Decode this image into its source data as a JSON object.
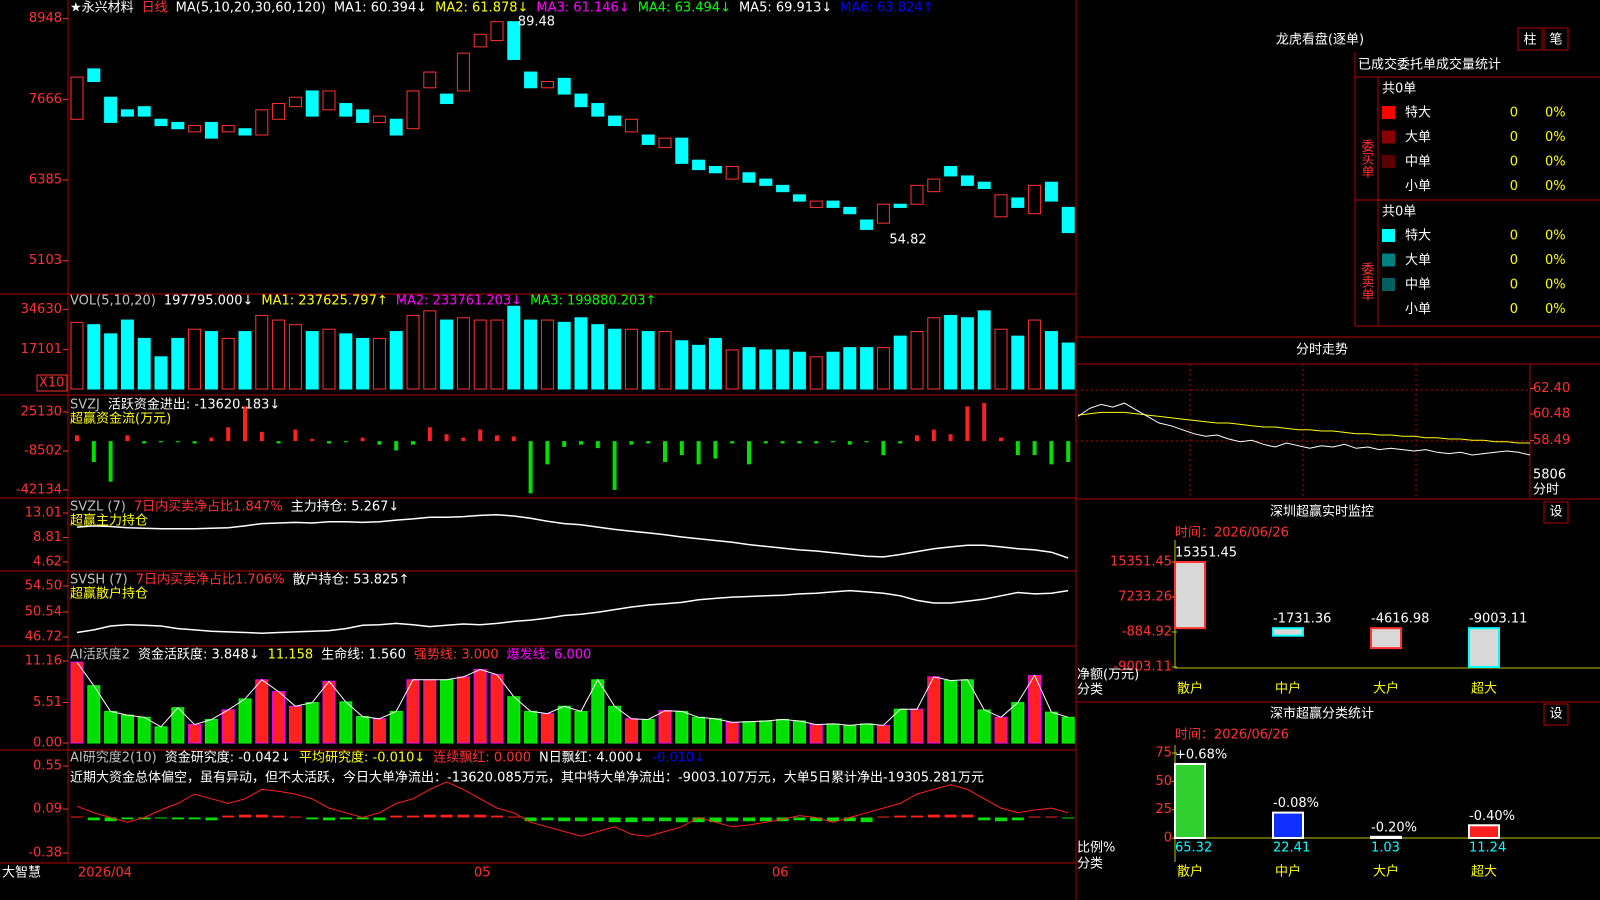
{
  "main": {
    "title": "★永兴材料",
    "period": "日线",
    "ma_params": "MA(5,10,20,30,60,120)",
    "legend": [
      {
        "text": "MA1: 60.394↓",
        "color": "#ffffff"
      },
      {
        "text": "MA2: 61.878↓",
        "color": "#ffff00"
      },
      {
        "text": "MA3: 61.146↓",
        "color": "#ff00ff"
      },
      {
        "text": "MA4: 63.494↓",
        "color": "#00ff00"
      },
      {
        "text": "MA5: 69.913↓",
        "color": "#ffffff"
      },
      {
        "text": "MA6: 63.824↑",
        "color": "#0000ff"
      }
    ],
    "high_mark": 89.48,
    "low_mark": 54.82,
    "ylim": [
      4638,
      9181
    ],
    "yticks": [
      8948,
      7666,
      6385,
      5103
    ],
    "up_color": "#ff3232",
    "down_color": "#00ffff",
    "open": [
      7350,
      8150,
      7700,
      7500,
      7550,
      7350,
      7300,
      7150,
      7300,
      7150,
      7200,
      7100,
      7350,
      7550,
      7800,
      7500,
      7600,
      7500,
      7300,
      7350,
      7200,
      7850,
      7750,
      7800,
      8500,
      8600,
      8900,
      8100,
      7850,
      8000,
      7750,
      7600,
      7400,
      7150,
      7100,
      6900,
      7050,
      6700,
      6600,
      6400,
      6500,
      6400,
      6300,
      6150,
      5950,
      6050,
      5950,
      5750,
      5700,
      6000,
      6000,
      6200,
      6600,
      6450,
      6350,
      5800,
      6100,
      5850,
      6350,
      5950
    ],
    "close": [
      8020,
      7950,
      7300,
      7400,
      7400,
      7250,
      7200,
      7250,
      7050,
      7250,
      7100,
      7500,
      7600,
      7700,
      7400,
      7800,
      7400,
      7300,
      7400,
      7100,
      7800,
      8100,
      7600,
      8400,
      8700,
      8900,
      8300,
      7850,
      7950,
      7750,
      7550,
      7400,
      7250,
      7350,
      6950,
      7050,
      6650,
      6550,
      6500,
      6600,
      6350,
      6300,
      6200,
      6050,
      6050,
      5950,
      5850,
      5600,
      6000,
      5950,
      6300,
      6400,
      6450,
      6300,
      6250,
      6150,
      5950,
      6300,
      6050,
      5550
    ]
  },
  "vol": {
    "name": "VOL(5,10,20)",
    "current": "197795.000↓",
    "legend": [
      {
        "text": "MA1: 237625.797↑",
        "color": "#ffff00"
      },
      {
        "text": "MA2: 233761.203↓",
        "color": "#ff00ff"
      },
      {
        "text": "MA3: 199880.203↑",
        "color": "#00ff00"
      }
    ],
    "unit": "X10",
    "ylim": [
      0,
      40470
    ],
    "yticks": [
      34630,
      17101
    ],
    "values": [
      29000,
      28000,
      24000,
      30000,
      22000,
      14000,
      22000,
      26000,
      25000,
      22000,
      25000,
      32000,
      30000,
      28000,
      25000,
      26000,
      24000,
      22000,
      22000,
      25000,
      32000,
      34000,
      30000,
      31000,
      30000,
      30000,
      36000,
      30000,
      30000,
      29000,
      31000,
      28000,
      26000,
      26000,
      25000,
      25000,
      21000,
      19000,
      22000,
      17000,
      18000,
      17000,
      17000,
      16000,
      14000,
      16000,
      18000,
      18000,
      18000,
      23000,
      25000,
      31000,
      32000,
      31000,
      34000,
      26000,
      23000,
      30000,
      25000,
      20000
    ]
  },
  "flow": {
    "name": "SVZJ",
    "active": "活跃资金进出: -13620.183↓",
    "subtitle": "超赢资金流(万元)",
    "ylim": [
      -48170,
      37200
    ],
    "yticks": [
      25130,
      -8502,
      -42134
    ],
    "up_color": "#ff2020",
    "down_color": "#00e000",
    "values": [
      5000,
      -18000,
      -35000,
      5000,
      -2000,
      -1000,
      -1000,
      -2000,
      3000,
      12000,
      30000,
      8000,
      -2000,
      10000,
      2000,
      -2000,
      -1000,
      3000,
      -3000,
      -8000,
      -3000,
      12000,
      6000,
      3000,
      10000,
      5000,
      4000,
      -45000,
      -20000,
      -5000,
      -3000,
      -6000,
      -42000,
      -3000,
      -2000,
      -18000,
      -12000,
      -20000,
      -15000,
      -2000,
      -20000,
      -2000,
      -2000,
      -2000,
      -2000,
      -1000,
      -3000,
      -1000,
      -12000,
      -2000,
      5000,
      10000,
      6000,
      30000,
      33000,
      3000,
      -12000,
      -12000,
      -20000,
      -18000
    ]
  },
  "zl": {
    "name": "SVZL (7)",
    "ratio": "7日内买卖净占比1.847%",
    "hold": "主力持仓: 5.267↓",
    "subtitle": "超赢主力持仓",
    "ylim": [
      3.25,
      15.24
    ],
    "yticks": [
      13.01,
      8.81,
      4.62
    ],
    "color": "#ffffff",
    "values": [
      10.6,
      10.8,
      10.7,
      10.5,
      10.4,
      10.3,
      10.3,
      10.3,
      10.4,
      10.5,
      10.8,
      11.2,
      11.3,
      11.4,
      11.3,
      11.5,
      11.5,
      11.4,
      11.5,
      11.8,
      12.0,
      12.3,
      12.3,
      12.4,
      12.6,
      12.7,
      12.5,
      12.1,
      11.6,
      11.2,
      11.0,
      10.6,
      10.2,
      9.9,
      9.6,
      9.3,
      8.9,
      8.6,
      8.3,
      8.0,
      7.6,
      7.3,
      7.0,
      6.7,
      6.5,
      6.2,
      5.9,
      5.6,
      5.5,
      5.9,
      6.4,
      6.9,
      7.2,
      7.5,
      7.5,
      7.2,
      6.9,
      6.7,
      6.3,
      5.3
    ]
  },
  "sh": {
    "name": "SVSH (7)",
    "ratio": "7日内买卖净占比1.706%",
    "hold": "散户持仓: 53.825↑",
    "subtitle": "超赢散户持仓",
    "ylim": [
      45.5,
      56.48
    ],
    "yticks": [
      {
        "value": 54.5,
        "label": "54.50"
      },
      50.54,
      46.72
    ],
    "color": "#ffffff",
    "values": [
      47.4,
      47.8,
      48.4,
      48.6,
      48.5,
      48.4,
      48.0,
      47.8,
      47.6,
      47.5,
      47.4,
      47.3,
      47.4,
      47.5,
      47.6,
      47.7,
      48.0,
      48.5,
      48.6,
      48.8,
      48.6,
      48.3,
      48.5,
      48.7,
      48.6,
      48.8,
      49.1,
      49.3,
      49.6,
      50.0,
      50.2,
      50.5,
      50.9,
      51.3,
      51.6,
      51.8,
      52.0,
      52.4,
      52.6,
      52.8,
      52.9,
      53.0,
      53.1,
      53.3,
      53.4,
      53.6,
      53.8,
      53.6,
      53.4,
      53.0,
      52.3,
      51.9,
      51.9,
      52.2,
      52.5,
      53.0,
      53.5,
      53.3,
      53.4,
      53.8
    ]
  },
  "ai": {
    "name": "AI活跃度2",
    "activity": "资金活跃度: 3.848↓",
    "second": "11.158",
    "life": "生命线: 1.560",
    "strong": "强势线: 3.000",
    "burst": "爆发线: 6.000",
    "ylim": [
      -0.68,
      12.93
    ],
    "yticks": [
      11.16,
      5.51,
      {
        "value": 0,
        "label": "0.00"
      }
    ],
    "up_color": "#ff2020",
    "down_color": "#00e000",
    "values": [
      11.0,
      7.8,
      4.3,
      3.8,
      3.5,
      2.2,
      4.8,
      2.5,
      3.2,
      4.5,
      6.0,
      8.6,
      7.0,
      5.0,
      5.5,
      8.4,
      5.6,
      3.6,
      3.3,
      4.3,
      8.6,
      8.6,
      8.6,
      9.0,
      10.0,
      9.3,
      6.3,
      4.3,
      4.0,
      5.0,
      4.3,
      8.6,
      5.0,
      3.3,
      3.2,
      4.4,
      4.3,
      3.5,
      3.3,
      2.8,
      2.9,
      3.0,
      3.2,
      3.0,
      2.5,
      2.6,
      2.4,
      2.6,
      2.4,
      4.6,
      4.6,
      9.0,
      8.5,
      8.6,
      4.5,
      3.5,
      5.5,
      9.2,
      4.2,
      3.5
    ]
  },
  "res": {
    "name": "AI研究度2(10)",
    "research": "资金研究度: -0.042↓",
    "average": "平均研究度: -0.010↓",
    "red_run": "连续飘红: 0.000",
    "n_red": "N日飘红: 4.000↓",
    "last": "-0.010↓",
    "comment": "近期大资金总体偏空，虽有异动，但不太活跃，今日大单净流出：-13620.085万元，其中特大单净流出：-9003.107万元，大单5日累计净出-19305.281万元",
    "ylim": [
      -0.476,
      0.7
    ],
    "yticks": [
      0.55,
      0.09,
      -0.38
    ],
    "line_color": "#ff2020",
    "up_color": "#ff2020",
    "down_color": "#00e000",
    "bars": [
      0.01,
      -0.03,
      -0.04,
      -0.02,
      -0.02,
      -0.01,
      -0.02,
      -0.02,
      -0.03,
      0.02,
      0.03,
      0.03,
      0.02,
      0.01,
      -0.02,
      -0.03,
      -0.02,
      -0.02,
      -0.03,
      0.02,
      0.02,
      0.03,
      0.03,
      0.03,
      0.03,
      0.02,
      0.01,
      -0.04,
      -0.03,
      -0.04,
      -0.04,
      -0.04,
      -0.05,
      -0.05,
      -0.04,
      -0.04,
      -0.05,
      -0.05,
      -0.05,
      -0.04,
      -0.04,
      -0.04,
      -0.04,
      -0.03,
      -0.04,
      -0.04,
      -0.04,
      -0.05,
      0.01,
      0.02,
      0.02,
      0.03,
      0.03,
      0.03,
      -0.03,
      -0.04,
      -0.03,
      0.01,
      0.01,
      -0.01
    ],
    "line": [
      0.12,
      0.05,
      0.0,
      -0.05,
      0.0,
      0.08,
      0.15,
      0.25,
      0.2,
      0.15,
      0.2,
      0.3,
      0.28,
      0.25,
      0.2,
      0.1,
      0.05,
      0.0,
      0.05,
      0.15,
      0.2,
      0.3,
      0.38,
      0.3,
      0.2,
      0.1,
      0.05,
      -0.05,
      -0.1,
      -0.15,
      -0.2,
      -0.15,
      -0.1,
      -0.18,
      -0.2,
      -0.15,
      -0.1,
      0.0,
      -0.05,
      -0.1,
      -0.08,
      -0.05,
      -0.02,
      0.02,
      0.0,
      -0.05,
      0.0,
      0.05,
      0.1,
      0.15,
      0.25,
      0.3,
      0.35,
      0.3,
      0.2,
      0.1,
      0.05,
      0.08,
      0.1,
      0.05
    ]
  },
  "footer": {
    "brand": "大智慧",
    "dates": [
      "2026/04",
      "05",
      "06"
    ]
  },
  "dragon": {
    "title": "龙虎看盘(逐单)",
    "buttons": [
      "柱",
      "笔"
    ],
    "header": "已成交委托单成交量统计",
    "buy": {
      "label": "委买单",
      "total": "共0单",
      "rows": [
        [
          "特大",
          0,
          "0%"
        ],
        [
          "大单",
          0,
          "0%"
        ],
        [
          "中单",
          0,
          "0%"
        ],
        [
          "小单",
          0,
          "0%"
        ]
      ],
      "colors": [
        "#ff0000",
        "#8b0000",
        "#5a0000",
        null
      ]
    },
    "sell": {
      "label": "委卖单",
      "total": "共0单",
      "rows": [
        [
          "特大",
          0,
          "0%"
        ],
        [
          "大单",
          0,
          "0%"
        ],
        [
          "中单",
          0,
          "0%"
        ],
        [
          "小单",
          0,
          "0%"
        ]
      ],
      "colors": [
        "#00ffff",
        "#008080",
        "#006060",
        null
      ]
    }
  },
  "intraday": {
    "title": "分时走势",
    "ylim": [
      56.57,
      64.09
    ],
    "yticks": [
      {
        "value": 62.4,
        "label": "62.40"
      },
      60.48,
      58.49
    ],
    "volume_label": "5806",
    "time_label": "分时",
    "price": [
      60.3,
      60.9,
      61.2,
      61.0,
      61.3,
      60.8,
      60.3,
      59.8,
      59.6,
      59.3,
      59.0,
      58.8,
      58.9,
      58.6,
      58.4,
      58.5,
      58.2,
      58.0,
      58.3,
      58.1,
      57.9,
      58.1,
      58.0,
      58.2,
      57.9,
      58.0,
      57.8,
      57.9,
      57.8,
      57.7,
      57.8,
      57.6,
      57.5,
      57.6,
      57.4,
      57.5,
      57.6,
      57.7,
      57.6,
      57.4
    ],
    "avg": [
      60.4,
      60.5,
      60.6,
      60.6,
      60.6,
      60.5,
      60.4,
      60.3,
      60.2,
      60.1,
      60.0,
      59.9,
      59.8,
      59.8,
      59.7,
      59.6,
      59.5,
      59.5,
      59.4,
      59.3,
      59.3,
      59.2,
      59.2,
      59.1,
      59.0,
      59.0,
      58.9,
      58.9,
      58.8,
      58.8,
      58.7,
      58.7,
      58.6,
      58.6,
      58.5,
      58.5,
      58.4,
      58.4,
      58.3,
      58.3
    ]
  },
  "sz_monitor": {
    "title": "深圳超赢实时监控",
    "button": "设",
    "time": "时间：2026/06/26",
    "ylabel": "净额(万元)",
    "xlabel": "分类",
    "categories": [
      "散户",
      "中户",
      "大户",
      "超大"
    ],
    "values": [
      15351.45,
      -1731.36,
      -4616.98,
      -9003.11
    ],
    "colors": [
      "#d8d8d8",
      "#d8d8d8",
      "#d8d8d8",
      "#d8d8d8"
    ],
    "outline": [
      "#ff3030",
      "#00ffff",
      "#ff3030",
      "#00ffff"
    ],
    "ylim": [
      -9003.11,
      15351.45
    ],
    "yticks": [
      15351.45,
      7233.26,
      -884.92,
      -9003.11
    ]
  },
  "sz_stats": {
    "title": "深市超赢分类统计",
    "button": "设",
    "time": "时间：2026/06/26",
    "ylabel": "比例%",
    "xlabel": "分类",
    "categories": [
      "散户",
      "中户",
      "大户",
      "超大"
    ],
    "values": [
      65.32,
      22.41,
      1.03,
      11.24
    ],
    "changes": [
      "+0.68%",
      "-0.08%",
      "-0.20%",
      "-0.40%"
    ],
    "colors": [
      "#30d030",
      "#1030ff",
      "#c0c0c0",
      "#ff2020"
    ],
    "ylim": [
      0,
      75
    ],
    "yticks": [
      75,
      50,
      25,
      0
    ]
  }
}
